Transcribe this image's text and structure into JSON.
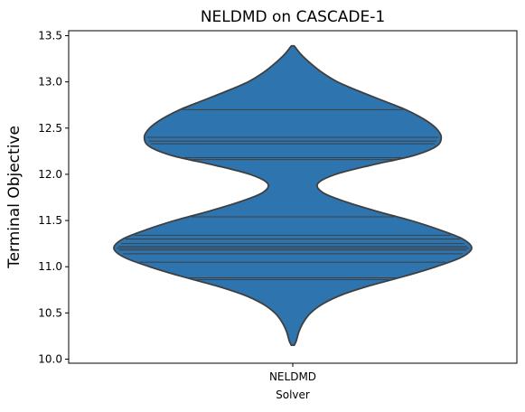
{
  "chart_data": {
    "type": "violin",
    "title": "NELDMD on CASCADE-1",
    "xlabel": "Solver",
    "ylabel": "Terminal Objective",
    "categories": [
      "NELDMD"
    ],
    "ylim": [
      10.0,
      13.5
    ],
    "yticks": [
      "10.0",
      "10.5",
      "11.0",
      "11.5",
      "12.0",
      "12.5",
      "13.0",
      "13.5"
    ],
    "grid": false,
    "legend": "none",
    "violin_color": "#2e75b0",
    "edge_color": "#3f3f3f",
    "range": [
      10.15,
      13.39
    ],
    "observations": [
      10.86,
      10.88,
      11.05,
      11.14,
      11.18,
      11.2,
      11.22,
      11.25,
      11.3,
      11.34,
      11.54,
      12.16,
      12.18,
      12.33,
      12.36,
      12.4,
      12.7
    ],
    "density_profile": [
      [
        13.39,
        0.008
      ],
      [
        13.3,
        0.045
      ],
      [
        13.2,
        0.1
      ],
      [
        13.1,
        0.165
      ],
      [
        13.0,
        0.25
      ],
      [
        12.9,
        0.37
      ],
      [
        12.8,
        0.5
      ],
      [
        12.7,
        0.63
      ],
      [
        12.6,
        0.73
      ],
      [
        12.5,
        0.8
      ],
      [
        12.4,
        0.83
      ],
      [
        12.3,
        0.8
      ],
      [
        12.2,
        0.67
      ],
      [
        12.1,
        0.44
      ],
      [
        12.0,
        0.24
      ],
      [
        11.9,
        0.14
      ],
      [
        11.8,
        0.17
      ],
      [
        11.7,
        0.3
      ],
      [
        11.6,
        0.47
      ],
      [
        11.5,
        0.66
      ],
      [
        11.4,
        0.82
      ],
      [
        11.3,
        0.95
      ],
      [
        11.2,
        1.0
      ],
      [
        11.1,
        0.94
      ],
      [
        11.0,
        0.8
      ],
      [
        10.9,
        0.63
      ],
      [
        10.8,
        0.44
      ],
      [
        10.7,
        0.28
      ],
      [
        10.6,
        0.17
      ],
      [
        10.5,
        0.1
      ],
      [
        10.4,
        0.06
      ],
      [
        10.3,
        0.035
      ],
      [
        10.2,
        0.02
      ],
      [
        10.15,
        0.008
      ]
    ]
  }
}
